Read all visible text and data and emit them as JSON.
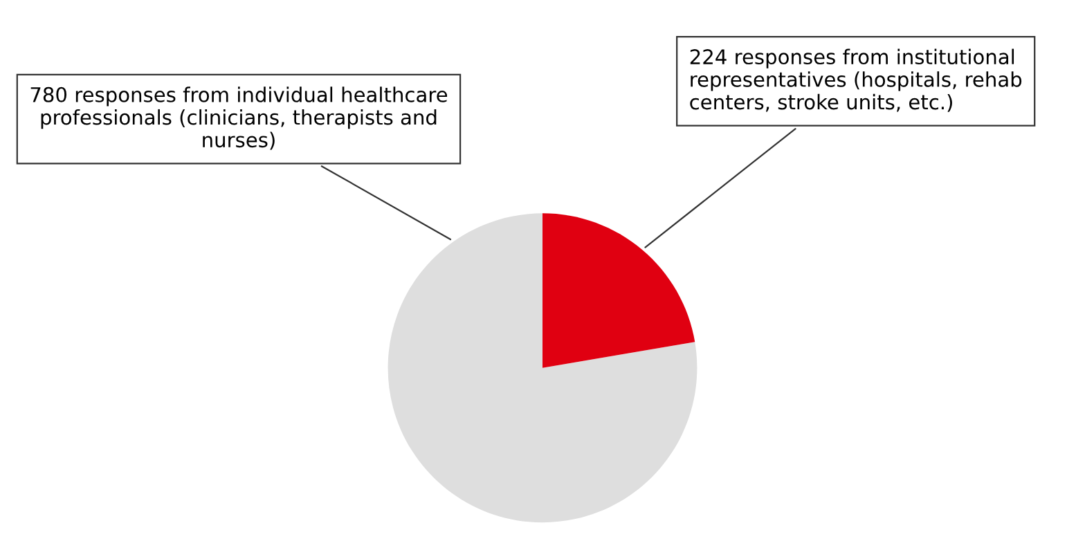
{
  "chart_data": {
    "type": "pie",
    "categories": [
      "780 responses from individual healthcare professionals (clinicians, therapists and nurses)",
      "224 responses from institutional representatives (hospitals, rehab centers, stroke units, etc.)"
    ],
    "values": [
      780,
      224
    ],
    "colors": [
      "#dedede",
      "#e00011"
    ],
    "legend": false
  }
}
